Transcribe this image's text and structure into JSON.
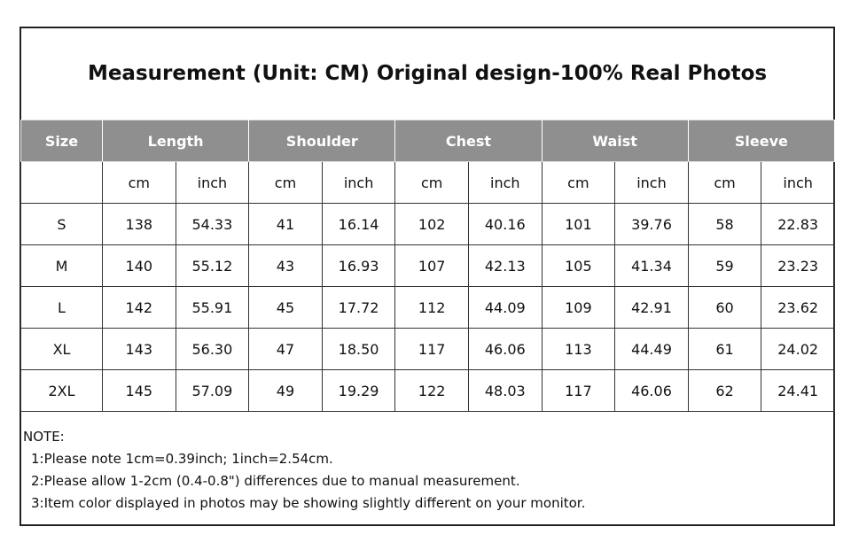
{
  "title": "Measurement (Unit: CM) Original design-100% Real Photos",
  "table": {
    "groups": [
      "Size",
      "Length",
      "Shoulder",
      "Chest",
      "Waist",
      "Sleeve"
    ],
    "units": [
      "cm",
      "inch",
      "cm",
      "inch",
      "cm",
      "inch",
      "cm",
      "inch",
      "cm",
      "inch"
    ],
    "rows": [
      [
        "S",
        "138",
        "54.33",
        "41",
        "16.14",
        "102",
        "40.16",
        "101",
        "39.76",
        "58",
        "22.83"
      ],
      [
        "M",
        "140",
        "55.12",
        "43",
        "16.93",
        "107",
        "42.13",
        "105",
        "41.34",
        "59",
        "23.23"
      ],
      [
        "L",
        "142",
        "55.91",
        "45",
        "17.72",
        "112",
        "44.09",
        "109",
        "42.91",
        "60",
        "23.62"
      ],
      [
        "XL",
        "143",
        "56.30",
        "47",
        "18.50",
        "117",
        "46.06",
        "113",
        "44.49",
        "61",
        "24.02"
      ],
      [
        "2XL",
        "145",
        "57.09",
        "49",
        "19.29",
        "122",
        "48.03",
        "117",
        "46.06",
        "62",
        "24.41"
      ]
    ]
  },
  "notes": {
    "label": "NOTE:",
    "items": [
      "1:Please note 1cm=0.39inch; 1inch=2.54cm.",
      "2:Please allow 1-2cm (0.4-0.8\") differences due to manual measurement.",
      "3:Item color displayed in photos may be showing slightly different on your monitor."
    ]
  }
}
